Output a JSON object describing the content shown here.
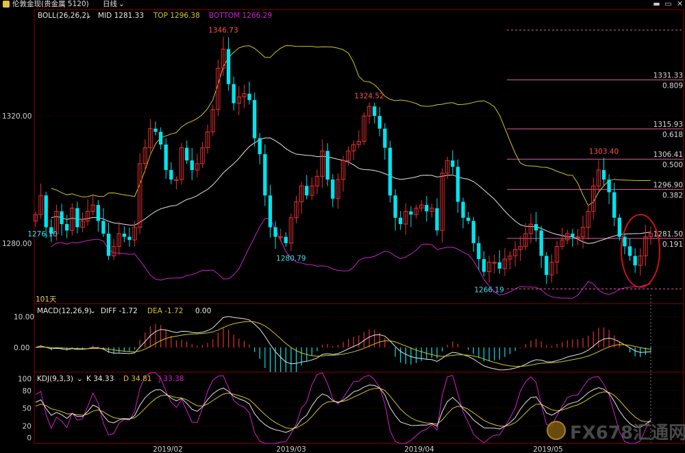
{
  "window": {
    "title": "伦敦金现(贵金属 5120)",
    "period_label": "日线",
    "buttons": [
      "minimize",
      "restore",
      "close"
    ]
  },
  "panels": {
    "boll": {
      "label": "BOLL(26,26,2)",
      "mid": "MID 1281.33",
      "top": "TOP 1296.38",
      "bottom": "BOTTOM 1266.29",
      "days_label": "101天"
    },
    "macd": {
      "label": "MACD(12,26,9)",
      "diff": "DIFF -1.72",
      "dea": "DEA -1.72",
      "macd": "0.00"
    },
    "kdj": {
      "label": "KDJ(9,3,3)",
      "k": "K 34.33",
      "d": "D 34.81",
      "j": "J 33.38"
    }
  },
  "watermark": "FX678汇通网",
  "colors": {
    "up": "#e53030",
    "down": "#00e5ee",
    "mid": "#e6e6e6",
    "top": "#d4c81e",
    "bottom": "#d020d0",
    "fib": "#e060a0",
    "grid": "#8b0000",
    "circle": "#d01010"
  },
  "chart_data": [
    {
      "type": "candlestick",
      "title": "伦敦金现 日线",
      "x_ticks": [
        "2019/02",
        "2019/03",
        "2019/04",
        "2019/05"
      ],
      "y_ticks": [
        "1320.00",
        "1280.00"
      ],
      "ylim": [
        1261,
        1353
      ],
      "price_annotations": [
        "1346.73",
        "1324.52",
        "1303.40",
        "1280.79",
        "1276.10",
        "1266.19"
      ],
      "fib_levels": [
        {
          "price": 1331.33,
          "ratio": "0.809"
        },
        {
          "price": 1315.93,
          "ratio": "0.618"
        },
        {
          "price": 1306.41,
          "ratio": "0.500"
        },
        {
          "price": 1296.9,
          "ratio": "0.382"
        },
        {
          "price": 1281.5,
          "ratio": "0.191"
        }
      ],
      "fib_top_dashed": 1347.0,
      "fib_bottom_dashed": 1265.6,
      "close_path": [
        1289,
        1295,
        1285,
        1283,
        1290,
        1286,
        1284,
        1291,
        1285,
        1287,
        1290,
        1292,
        1287,
        1283,
        1276,
        1279,
        1283,
        1282,
        1281,
        1285,
        1305,
        1310,
        1316,
        1315,
        1311,
        1303,
        1300,
        1300,
        1310,
        1306,
        1303,
        1305,
        1310,
        1315,
        1322,
        1335,
        1341,
        1330,
        1324,
        1326,
        1327,
        1325,
        1313,
        1308,
        1295,
        1285,
        1282,
        1282,
        1280,
        1288,
        1293,
        1298,
        1295,
        1298,
        1301,
        1309,
        1300,
        1294,
        1300,
        1306,
        1309,
        1311,
        1312,
        1320,
        1323,
        1320,
        1316,
        1310,
        1295,
        1288,
        1286,
        1290,
        1289,
        1291,
        1292,
        1290,
        1291,
        1284,
        1302,
        1306,
        1304,
        1293,
        1288,
        1287,
        1280,
        1275,
        1271,
        1274,
        1274,
        1272,
        1275,
        1276,
        1278,
        1279,
        1283,
        1286,
        1284,
        1276,
        1270,
        1274,
        1279,
        1281,
        1283,
        1282,
        1282,
        1285,
        1290,
        1298,
        1303,
        1300,
        1296,
        1288,
        1282,
        1279,
        1276,
        1273,
        1276,
        1282,
        1283
      ]
    },
    {
      "type": "macd",
      "y_ticks": [
        "10.00",
        "0.00"
      ],
      "ylim": [
        -8,
        14
      ],
      "series": [
        "DIFF",
        "DEA",
        "MACD"
      ]
    },
    {
      "type": "kdj",
      "y_ticks": [
        "100",
        "80",
        "50",
        "20",
        "0"
      ],
      "ylim": [
        -10,
        110
      ],
      "series": [
        "K",
        "D",
        "J"
      ]
    }
  ]
}
